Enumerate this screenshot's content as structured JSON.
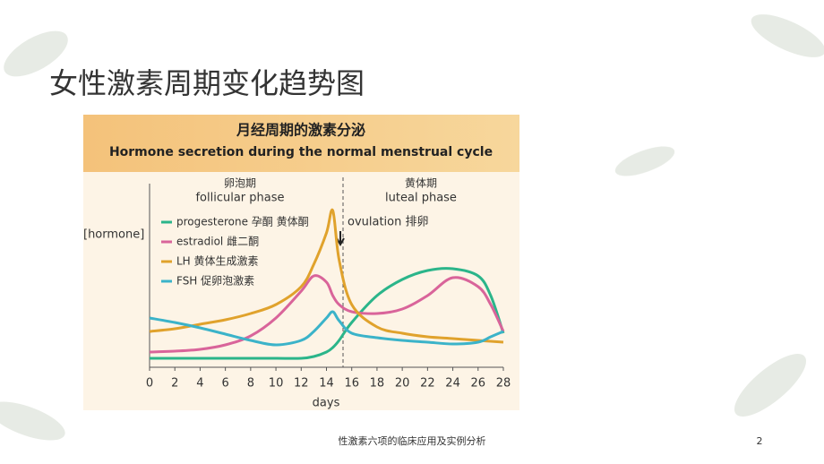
{
  "slide": {
    "title": "女性激素周期变化趋势图",
    "footer": "性激素六项的临床应用及实例分析",
    "page_number": "2"
  },
  "chart_data": {
    "type": "line",
    "title": "月经周期的激素分泌",
    "subtitle": "Hormone secretion during the normal menstrual cycle",
    "xlabel": "days",
    "ylabel": "[hormone]",
    "annotations": [
      "卵泡期",
      "follicular phase",
      "黄体期",
      "luteal phase",
      "ovulation 排卵"
    ],
    "x": [
      0,
      2,
      4,
      6,
      8,
      10,
      12,
      13,
      14,
      14.5,
      15,
      16,
      18,
      20,
      22,
      24,
      26,
      27,
      28
    ],
    "xlim": [
      0,
      28
    ],
    "xticks": [
      0,
      2,
      4,
      6,
      8,
      10,
      12,
      14,
      16,
      18,
      20,
      22,
      24,
      26,
      28
    ],
    "ylim": [
      0,
      100
    ],
    "series": [
      {
        "name": "progesterone 孕酮 黄体酮",
        "color": "#2bb58a",
        "values": [
          5,
          5,
          5,
          5,
          5,
          5,
          5,
          6,
          8.5,
          11,
          15,
          25,
          40,
          49,
          54,
          55,
          51,
          40,
          19
        ]
      },
      {
        "name": "estradiol 雌二酮",
        "color": "#d9649a",
        "values": [
          8.5,
          9,
          10,
          12.5,
          17.5,
          27.5,
          42.5,
          51,
          47.5,
          40,
          35,
          31,
          30,
          32.5,
          40,
          50,
          45,
          35,
          20
        ]
      },
      {
        "name": "LH 黄体生成激素",
        "color": "#e0a22c",
        "values": [
          20,
          21.5,
          24,
          26.5,
          30,
          35,
          45,
          57.5,
          75,
          87.5,
          60,
          35,
          22.5,
          19,
          17,
          16,
          15,
          14.5,
          14
        ]
      },
      {
        "name": "FSH 促卵泡激素",
        "color": "#3bb3c9",
        "values": [
          27.5,
          25,
          22,
          18.5,
          15,
          12.5,
          15,
          20,
          27.5,
          31,
          26,
          19,
          16.5,
          15,
          14,
          13,
          14,
          17,
          20
        ]
      }
    ]
  }
}
